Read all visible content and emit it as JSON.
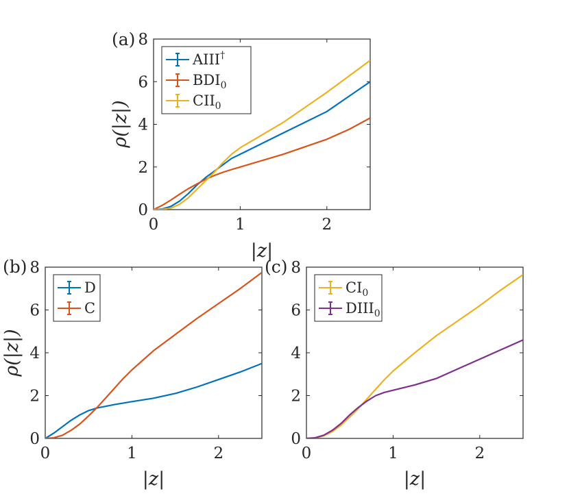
{
  "chart_data": [
    {
      "panel": "(a)",
      "type": "line",
      "xlabel": "|z|",
      "ylabel": "ρ(|z|)",
      "xlim": [
        0,
        2.5
      ],
      "ylim": [
        0,
        8
      ],
      "xticks": [
        "0",
        "1",
        "2"
      ],
      "yticks": [
        "0",
        "2",
        "4",
        "6",
        "8"
      ],
      "legend_position": "top-left",
      "grid": false,
      "series": [
        {
          "name": "AIII",
          "sup": "†",
          "sub": "",
          "color": "#0072BD",
          "x": [
            0,
            0.1,
            0.2,
            0.3,
            0.4,
            0.5,
            0.6,
            0.7,
            0.8,
            0.9,
            1.0,
            1.25,
            1.5,
            1.75,
            2.0,
            2.25,
            2.5
          ],
          "y": [
            0,
            0.03,
            0.15,
            0.4,
            0.75,
            1.15,
            1.5,
            1.8,
            2.1,
            2.4,
            2.6,
            3.1,
            3.6,
            4.1,
            4.6,
            5.3,
            6.0
          ]
        },
        {
          "name": "BDI",
          "sup": "",
          "sub": "0",
          "color": "#D95319",
          "x": [
            0,
            0.1,
            0.2,
            0.3,
            0.4,
            0.5,
            0.6,
            0.7,
            0.8,
            0.9,
            1.0,
            1.25,
            1.5,
            1.75,
            2.0,
            2.25,
            2.5
          ],
          "y": [
            0,
            0.2,
            0.45,
            0.72,
            0.98,
            1.2,
            1.42,
            1.6,
            1.75,
            1.88,
            2.0,
            2.3,
            2.6,
            2.95,
            3.3,
            3.75,
            4.3
          ]
        },
        {
          "name": "CII",
          "sup": "",
          "sub": "0",
          "color": "#EDB120",
          "x": [
            0,
            0.1,
            0.2,
            0.3,
            0.4,
            0.5,
            0.6,
            0.7,
            0.8,
            0.9,
            1.0,
            1.25,
            1.5,
            1.75,
            2.0,
            2.25,
            2.5
          ],
          "y": [
            0,
            0.01,
            0.07,
            0.25,
            0.55,
            0.95,
            1.35,
            1.75,
            2.2,
            2.6,
            2.9,
            3.5,
            4.1,
            4.8,
            5.5,
            6.25,
            7.0
          ]
        }
      ]
    },
    {
      "panel": "(b)",
      "type": "line",
      "xlabel": "|z|",
      "ylabel": "ρ(|z|)",
      "xlim": [
        0,
        2.5
      ],
      "ylim": [
        0,
        8
      ],
      "xticks": [
        "0",
        "1",
        "2"
      ],
      "yticks": [
        "0",
        "2",
        "4",
        "6",
        "8"
      ],
      "legend_position": "top-left",
      "grid": false,
      "series": [
        {
          "name": "D",
          "sup": "",
          "sub": "",
          "color": "#0072BD",
          "x": [
            0,
            0.1,
            0.2,
            0.3,
            0.4,
            0.5,
            0.6,
            0.7,
            0.8,
            0.9,
            1.0,
            1.25,
            1.5,
            1.75,
            2.0,
            2.25,
            2.5
          ],
          "y": [
            0,
            0.25,
            0.55,
            0.85,
            1.1,
            1.3,
            1.42,
            1.5,
            1.58,
            1.65,
            1.72,
            1.88,
            2.1,
            2.4,
            2.75,
            3.1,
            3.5
          ]
        },
        {
          "name": "C",
          "sup": "",
          "sub": "",
          "color": "#D95319",
          "x": [
            0,
            0.1,
            0.2,
            0.3,
            0.4,
            0.5,
            0.6,
            0.7,
            0.8,
            0.9,
            1.0,
            1.25,
            1.5,
            1.75,
            2.0,
            2.25,
            2.5
          ],
          "y": [
            0,
            0.03,
            0.15,
            0.38,
            0.68,
            1.05,
            1.45,
            1.9,
            2.35,
            2.8,
            3.2,
            4.1,
            4.85,
            5.6,
            6.3,
            7.0,
            7.75
          ]
        }
      ]
    },
    {
      "panel": "(c)",
      "type": "line",
      "xlabel": "|z|",
      "ylabel": "",
      "xlim": [
        0,
        2.5
      ],
      "ylim": [
        0,
        8
      ],
      "xticks": [
        "0",
        "1",
        "2"
      ],
      "yticks": [
        "0",
        "2",
        "4",
        "6",
        "8"
      ],
      "legend_position": "top-left",
      "grid": false,
      "series": [
        {
          "name": "CI",
          "sup": "",
          "sub": "0",
          "color": "#EDB120",
          "x": [
            0,
            0.1,
            0.2,
            0.3,
            0.4,
            0.5,
            0.6,
            0.7,
            0.8,
            0.9,
            1.0,
            1.25,
            1.5,
            1.75,
            2.0,
            2.25,
            2.5
          ],
          "y": [
            0,
            0.02,
            0.12,
            0.32,
            0.62,
            1.0,
            1.4,
            1.85,
            2.3,
            2.75,
            3.15,
            4.0,
            4.8,
            5.5,
            6.2,
            6.95,
            7.65
          ]
        },
        {
          "name": "DIII",
          "sup": "",
          "sub": "0",
          "color": "#7E2F8E",
          "x": [
            0,
            0.1,
            0.2,
            0.3,
            0.4,
            0.5,
            0.6,
            0.7,
            0.8,
            0.9,
            1.0,
            1.25,
            1.5,
            1.75,
            2.0,
            2.25,
            2.5
          ],
          "y": [
            0,
            0.03,
            0.15,
            0.38,
            0.7,
            1.1,
            1.45,
            1.75,
            2.0,
            2.15,
            2.25,
            2.5,
            2.8,
            3.25,
            3.7,
            4.15,
            4.6
          ]
        }
      ]
    }
  ]
}
